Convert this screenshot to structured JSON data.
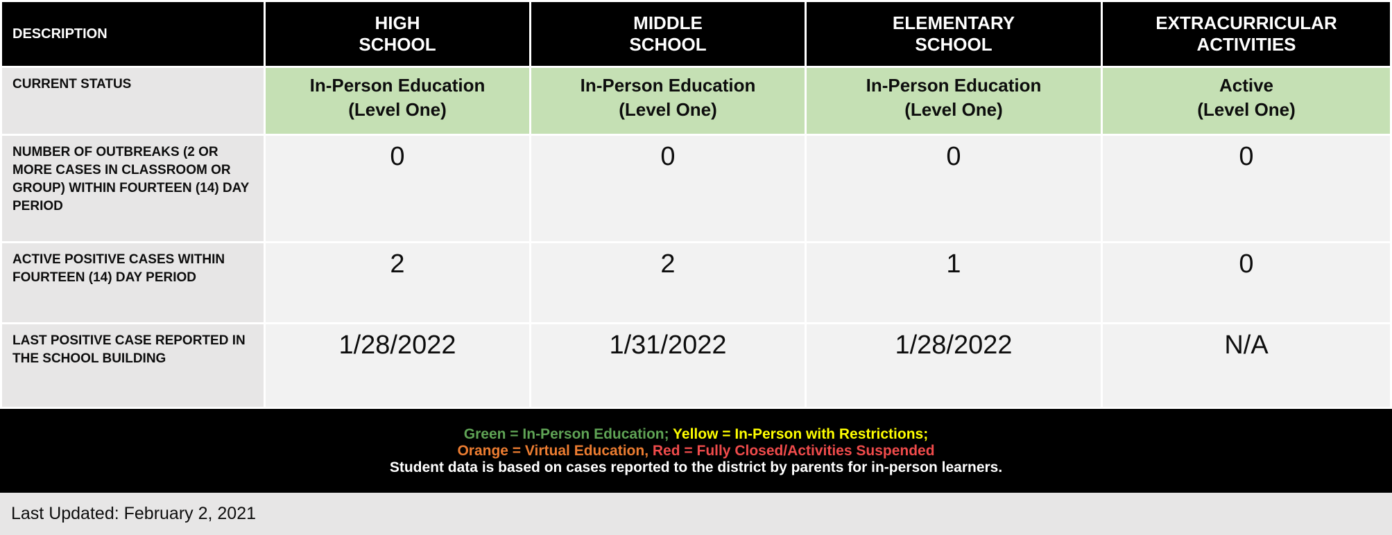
{
  "table": {
    "header": {
      "description": "DESCRIPTION",
      "columns": [
        {
          "line1": "HIGH",
          "line2": "SCHOOL"
        },
        {
          "line1": "MIDDLE",
          "line2": "SCHOOL"
        },
        {
          "line1": "ELEMENTARY",
          "line2": "SCHOOL"
        },
        {
          "line1": "EXTRACURRICULAR",
          "line2": "ACTIVITIES"
        }
      ]
    },
    "rows": [
      {
        "label": "CURRENT STATUS",
        "cells": [
          {
            "line1": "In-Person Education",
            "line2": "(Level One)"
          },
          {
            "line1": "In-Person Education",
            "line2": "(Level One)"
          },
          {
            "line1": "In-Person Education",
            "line2": "(Level One)"
          },
          {
            "line1": "Active",
            "line2": "(Level One)"
          }
        ]
      },
      {
        "label": "NUMBER OF OUTBREAKS (2 OR MORE CASES IN CLASSROOM OR GROUP) WITHIN FOURTEEN (14) DAY PERIOD",
        "cells": [
          "0",
          "0",
          "0",
          "0"
        ]
      },
      {
        "label": "ACTIVE POSITIVE CASES WITHIN FOURTEEN (14) DAY PERIOD",
        "cells": [
          "2",
          "2",
          "1",
          "0"
        ]
      },
      {
        "label": "LAST POSITIVE CASE REPORTED IN THE SCHOOL BUILDING",
        "cells": [
          "1/28/2022",
          "1/31/2022",
          "1/28/2022",
          "N/A"
        ]
      }
    ]
  },
  "legend": {
    "line1": [
      {
        "text": "Green = In-Person Education;",
        "color": "#5fa355"
      },
      {
        "text": " Yellow = In-Person with Restrictions;",
        "color": "#ffff00"
      }
    ],
    "line2": [
      {
        "text": "Orange = Virtual Education,",
        "color": "#ed7d31"
      },
      {
        "text": " Red = Fully Closed/Activities Suspended",
        "color": "#f04b4b"
      }
    ],
    "line3": "Student data is based on cases reported to the district by parents for in-person learners."
  },
  "footer": {
    "last_updated": "Last Updated: February 2, 2021"
  },
  "colors": {
    "header_bg": "#000000",
    "header_text": "#ffffff",
    "label_bg": "#e7e6e6",
    "cell_bg": "#f2f2f2",
    "status_green_bg": "#c5e0b4",
    "legend_bar_bg": "#000000",
    "legend_green": "#5fa355",
    "legend_yellow": "#ffff00",
    "legend_orange": "#ed7d31",
    "legend_red": "#f04b4b",
    "bottom_bar_bg": "#e7e6e6"
  }
}
